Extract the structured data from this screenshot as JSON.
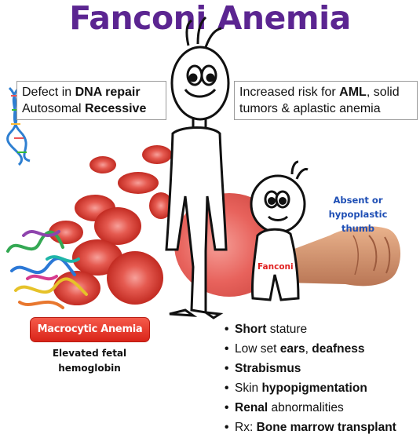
{
  "title": "Fanconi Anemia",
  "box_left": {
    "line1_prefix": "Defect in ",
    "line1_bold": "DNA repair",
    "line2_prefix": "Autosomal ",
    "line2_bold": "Recessive"
  },
  "box_right": {
    "line1_prefix": "Increased risk for ",
    "line1_bold": "AML",
    "line1_suffix": ", solid",
    "line2": "tumors & aplastic anemia"
  },
  "thumb_label": {
    "line1": "Absent or",
    "line2": "hypoplastic thumb"
  },
  "child_label": "Fanconi",
  "macrocytic_badge": "Macrocytic Anemia",
  "fetal_note": {
    "line1": "Elevated fetal",
    "line2": "hemoglobin"
  },
  "bullet_char": "•",
  "bullets": [
    {
      "bold_pre": "Short",
      "rest": " stature"
    },
    {
      "pre": "Low set ",
      "bold": "ears",
      "mid": ", ",
      "bold2": "deafness"
    },
    {
      "bold_pre": "Strabismus"
    },
    {
      "pre": "Skin ",
      "bold": "hypopigmentation"
    },
    {
      "bold_pre": "Renal",
      "rest": " abnormalities"
    },
    {
      "pre": "Rx: ",
      "bold": "Bone marrow transplant"
    }
  ],
  "colors": {
    "title": "#5b2591",
    "thumb_label": "#1f4fb5",
    "child_label": "#e02020",
    "badge": "#e0362a",
    "rbc": "#e0463c"
  },
  "icons": [
    "dna-helix-icon",
    "red-blood-cell-icon",
    "protein-ribbon-icon",
    "thumb-fist-icon",
    "tall-cartoon-figure",
    "short-cartoon-figure"
  ]
}
